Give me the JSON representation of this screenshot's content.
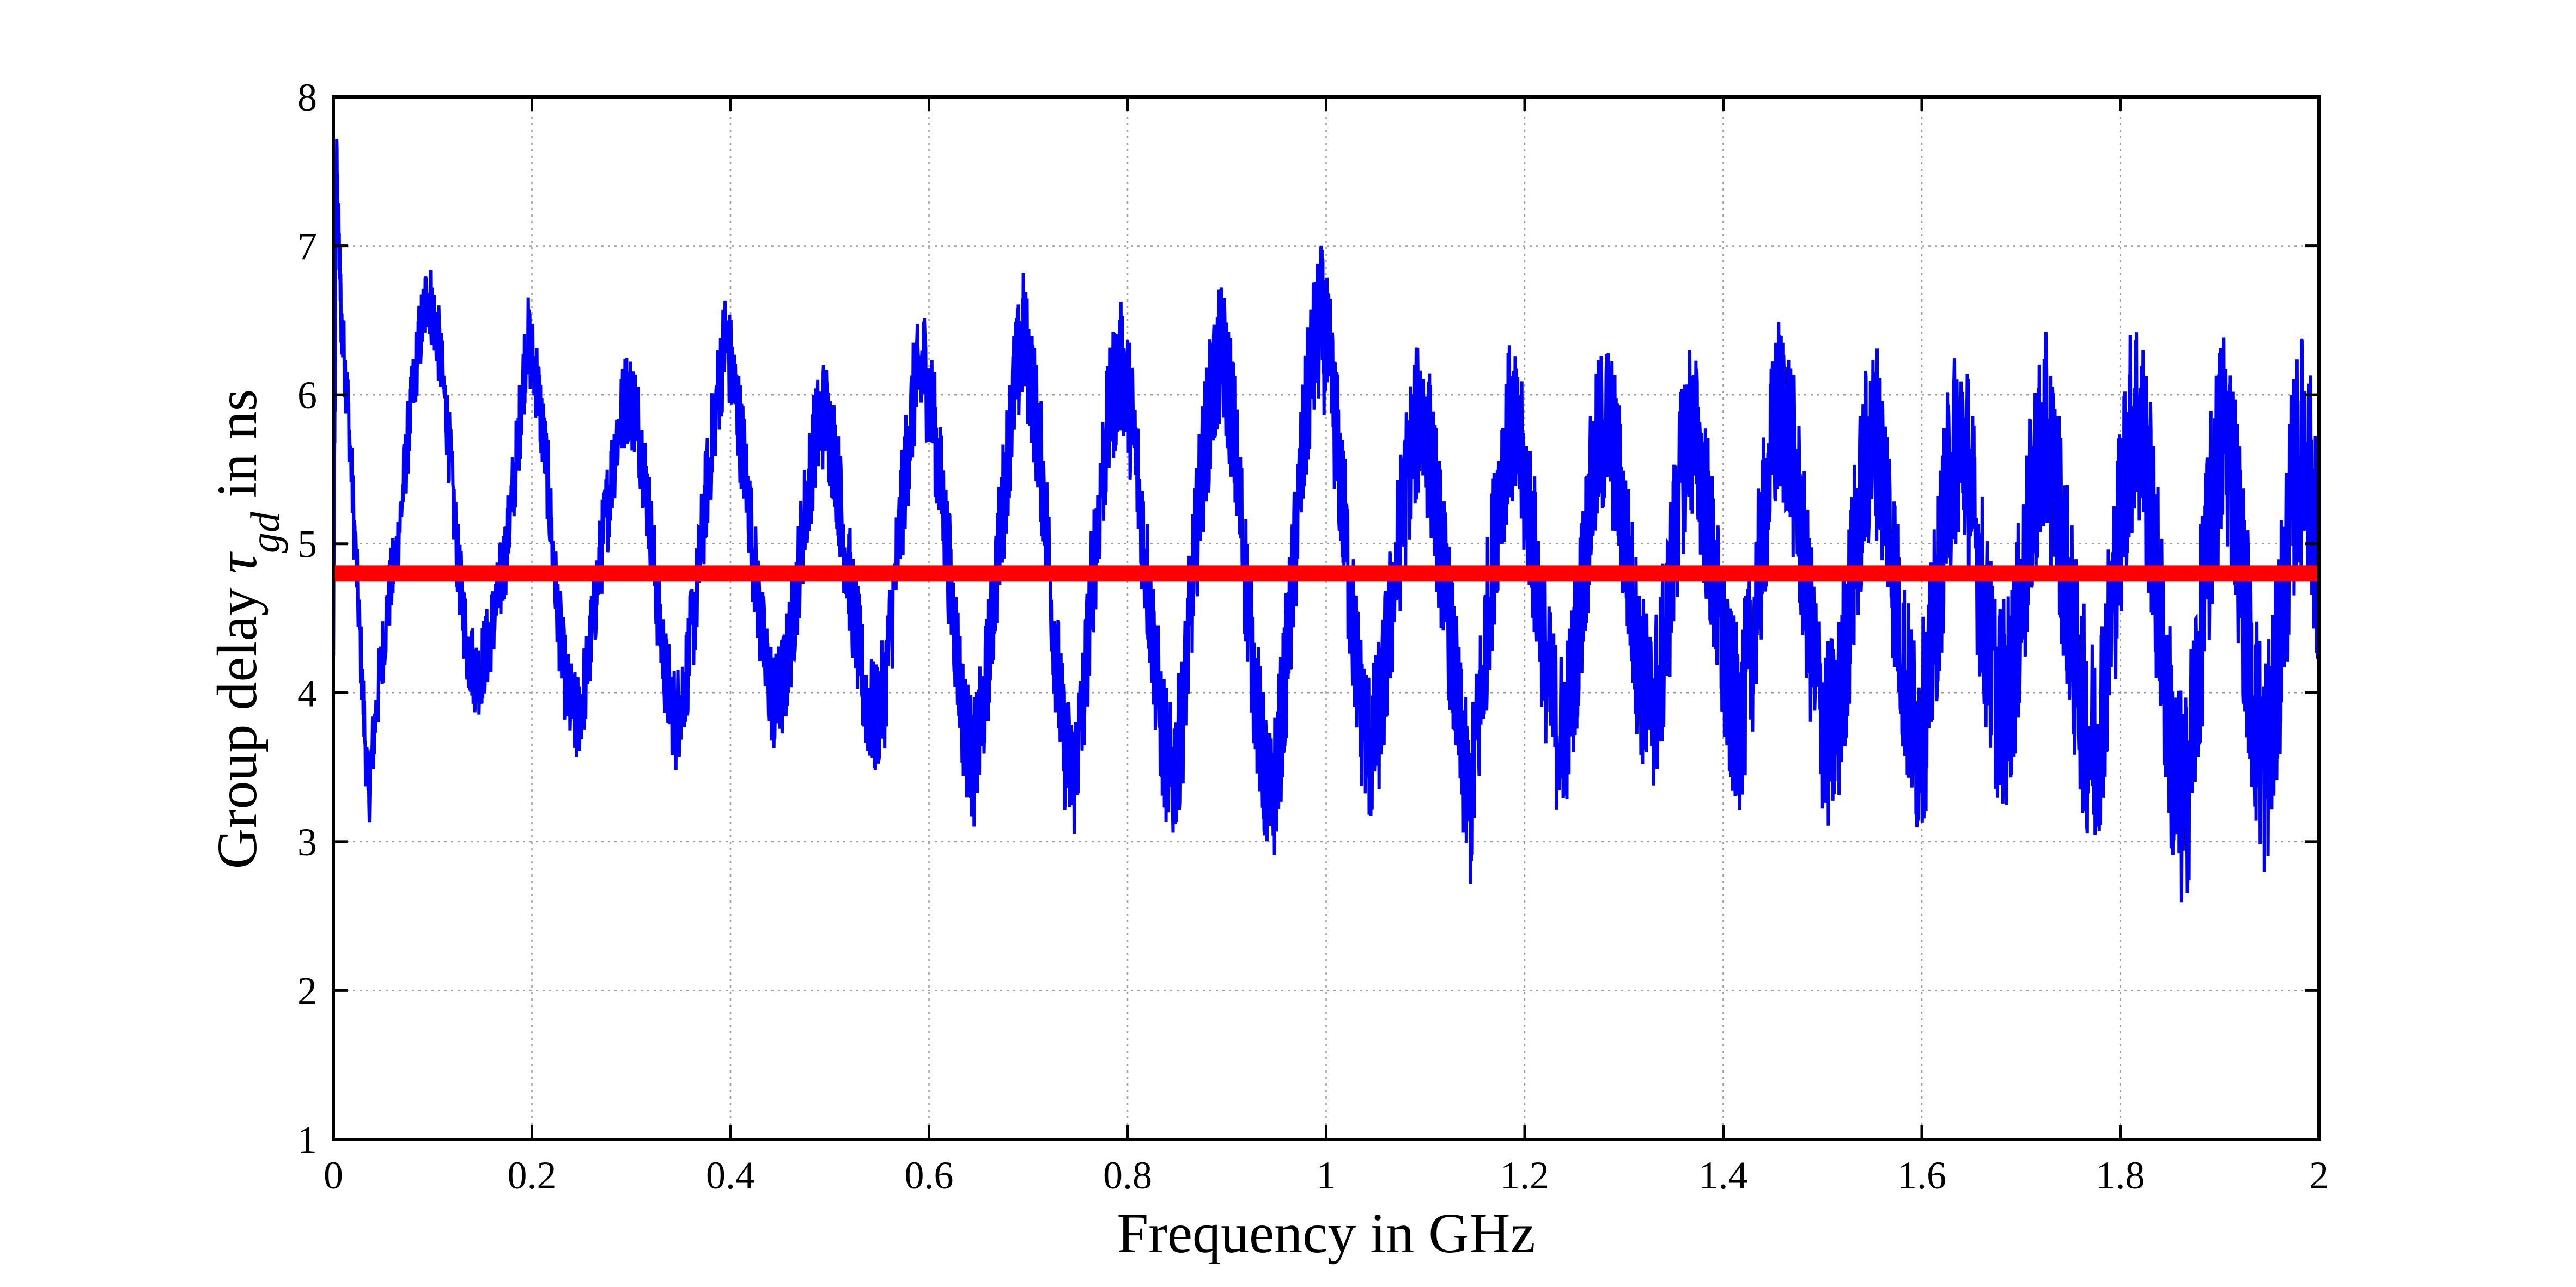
{
  "chart_data": {
    "type": "line",
    "title": "",
    "xlabel": "Frequency in GHz",
    "ylabel": {
      "prefix": "Group delay ",
      "symbol": "τ",
      "subscript": "gd",
      "suffix": " in ns"
    },
    "xlim": [
      0,
      2
    ],
    "ylim": [
      1,
      8
    ],
    "x_ticks": [
      "0",
      "0.2",
      "0.4",
      "0.6",
      "0.8",
      "1",
      "1.2",
      "1.4",
      "1.6",
      "1.8",
      "2"
    ],
    "y_ticks": [
      "1",
      "2",
      "3",
      "4",
      "5",
      "6",
      "7",
      "8"
    ],
    "grid": true,
    "legend": "none",
    "series": [
      {
        "color": "#0000ff",
        "style": "noisy-oscillation",
        "x": [
          0.0,
          0.003,
          0.008,
          0.015,
          0.025,
          0.035,
          0.045,
          0.055,
          0.065,
          0.075,
          0.085,
          0.095,
          0.105,
          0.115,
          0.125,
          0.135,
          0.145,
          0.155,
          0.165,
          0.175,
          0.185,
          0.195,
          0.205,
          0.215,
          0.225,
          0.235,
          0.245,
          0.255,
          0.265,
          0.275,
          0.285,
          0.295,
          0.305,
          0.315,
          0.325,
          0.335,
          0.345,
          0.355,
          0.365,
          0.375,
          0.385,
          0.395,
          0.405,
          0.415,
          0.425,
          0.435,
          0.445,
          0.455,
          0.465,
          0.475,
          0.485,
          0.495,
          0.505,
          0.515,
          0.525,
          0.535,
          0.545,
          0.555,
          0.565,
          0.575,
          0.585,
          0.595,
          0.605,
          0.615,
          0.625,
          0.635,
          0.645,
          0.655,
          0.665,
          0.675,
          0.685,
          0.695,
          0.705,
          0.715,
          0.725,
          0.735,
          0.745,
          0.755,
          0.765,
          0.775,
          0.785,
          0.795,
          0.805,
          0.815,
          0.825,
          0.835,
          0.845,
          0.855,
          0.865,
          0.875,
          0.885,
          0.895,
          0.905,
          0.915,
          0.925,
          0.935,
          0.945,
          0.955,
          0.965,
          0.975,
          0.985,
          0.995,
          1.005,
          1.015,
          1.025,
          1.035,
          1.045,
          1.055,
          1.065,
          1.075,
          1.085,
          1.095,
          1.105,
          1.115,
          1.125,
          1.135,
          1.145,
          1.155,
          1.165,
          1.175,
          1.185,
          1.195,
          1.205,
          1.215,
          1.225,
          1.235,
          1.245,
          1.255,
          1.265,
          1.275,
          1.285,
          1.295,
          1.305,
          1.315,
          1.325,
          1.335,
          1.345,
          1.355,
          1.365,
          1.375,
          1.385,
          1.395,
          1.405,
          1.415,
          1.425,
          1.435,
          1.445,
          1.455,
          1.465,
          1.475,
          1.485,
          1.495,
          1.505,
          1.515,
          1.525,
          1.535,
          1.545,
          1.555,
          1.565,
          1.575,
          1.585,
          1.595,
          1.605,
          1.615,
          1.625,
          1.635,
          1.645,
          1.655,
          1.665,
          1.675,
          1.685,
          1.695,
          1.705,
          1.715,
          1.725,
          1.735,
          1.745,
          1.755,
          1.765,
          1.775,
          1.785,
          1.795,
          1.805,
          1.815,
          1.825,
          1.835,
          1.845,
          1.855,
          1.865,
          1.875,
          1.885,
          1.895,
          1.905,
          1.915,
          1.925,
          1.935,
          1.945,
          1.955,
          1.965,
          1.975,
          1.985,
          1.995,
          2.0
        ],
        "y": [
          4.2,
          7.6,
          6.5,
          5.9,
          4.6,
          3.3,
          4.0,
          4.6,
          5.0,
          5.7,
          6.3,
          6.7,
          6.4,
          5.8,
          4.9,
          4.3,
          4.1,
          4.3,
          4.6,
          5.0,
          5.6,
          6.4,
          6.1,
          5.5,
          4.6,
          4.0,
          3.8,
          4.1,
          4.7,
          5.2,
          5.7,
          6.0,
          5.9,
          5.4,
          4.7,
          4.1,
          3.8,
          4.1,
          4.6,
          5.3,
          5.9,
          6.4,
          6.0,
          5.5,
          4.8,
          4.2,
          3.9,
          4.1,
          4.6,
          5.2,
          5.7,
          5.9,
          5.6,
          5.0,
          4.5,
          4.0,
          3.8,
          4.0,
          4.7,
          5.4,
          6.0,
          6.2,
          5.8,
          5.2,
          4.5,
          3.8,
          3.5,
          3.9,
          4.6,
          5.3,
          6.0,
          6.4,
          6.0,
          5.4,
          4.5,
          3.7,
          3.4,
          3.9,
          4.8,
          5.5,
          6.0,
          6.2,
          5.8,
          5.1,
          4.4,
          3.7,
          3.4,
          3.8,
          4.7,
          5.5,
          6.0,
          6.3,
          5.9,
          5.1,
          4.3,
          3.6,
          3.2,
          3.8,
          4.6,
          5.5,
          6.2,
          6.5,
          6.1,
          5.4,
          4.6,
          3.9,
          3.6,
          3.9,
          4.5,
          5.1,
          5.6,
          5.9,
          5.6,
          5.0,
          4.4,
          3.7,
          3.2,
          3.9,
          4.7,
          5.4,
          5.8,
          5.6,
          5.2,
          4.6,
          4.0,
          3.7,
          3.9,
          4.5,
          5.2,
          5.7,
          5.8,
          5.4,
          4.8,
          4.2,
          3.9,
          4.0,
          4.6,
          5.3,
          5.8,
          5.6,
          5.1,
          4.5,
          4.0,
          3.8,
          4.1,
          4.7,
          5.4,
          5.9,
          5.8,
          5.3,
          4.6,
          4.0,
          3.7,
          3.8,
          4.4,
          5.1,
          5.6,
          5.7,
          5.3,
          4.6,
          4.0,
          3.7,
          3.9,
          4.6,
          5.3,
          5.7,
          5.6,
          5.0,
          4.4,
          4.0,
          3.9,
          4.3,
          4.9,
          5.5,
          5.7,
          5.4,
          4.8,
          4.2,
          3.8,
          3.6,
          4.1,
          4.8,
          5.5,
          5.9,
          5.6,
          4.9,
          4.1,
          3.4,
          3.2,
          3.9,
          4.7,
          5.4,
          5.8,
          5.4,
          4.6,
          3.9,
          3.5,
          3.9,
          4.7,
          5.4,
          5.7,
          5.2,
          4.6
        ]
      },
      {
        "color": "#ff0000",
        "style": "constant",
        "x": [
          0,
          2
        ],
        "y": [
          4.8,
          4.8
        ]
      }
    ]
  }
}
